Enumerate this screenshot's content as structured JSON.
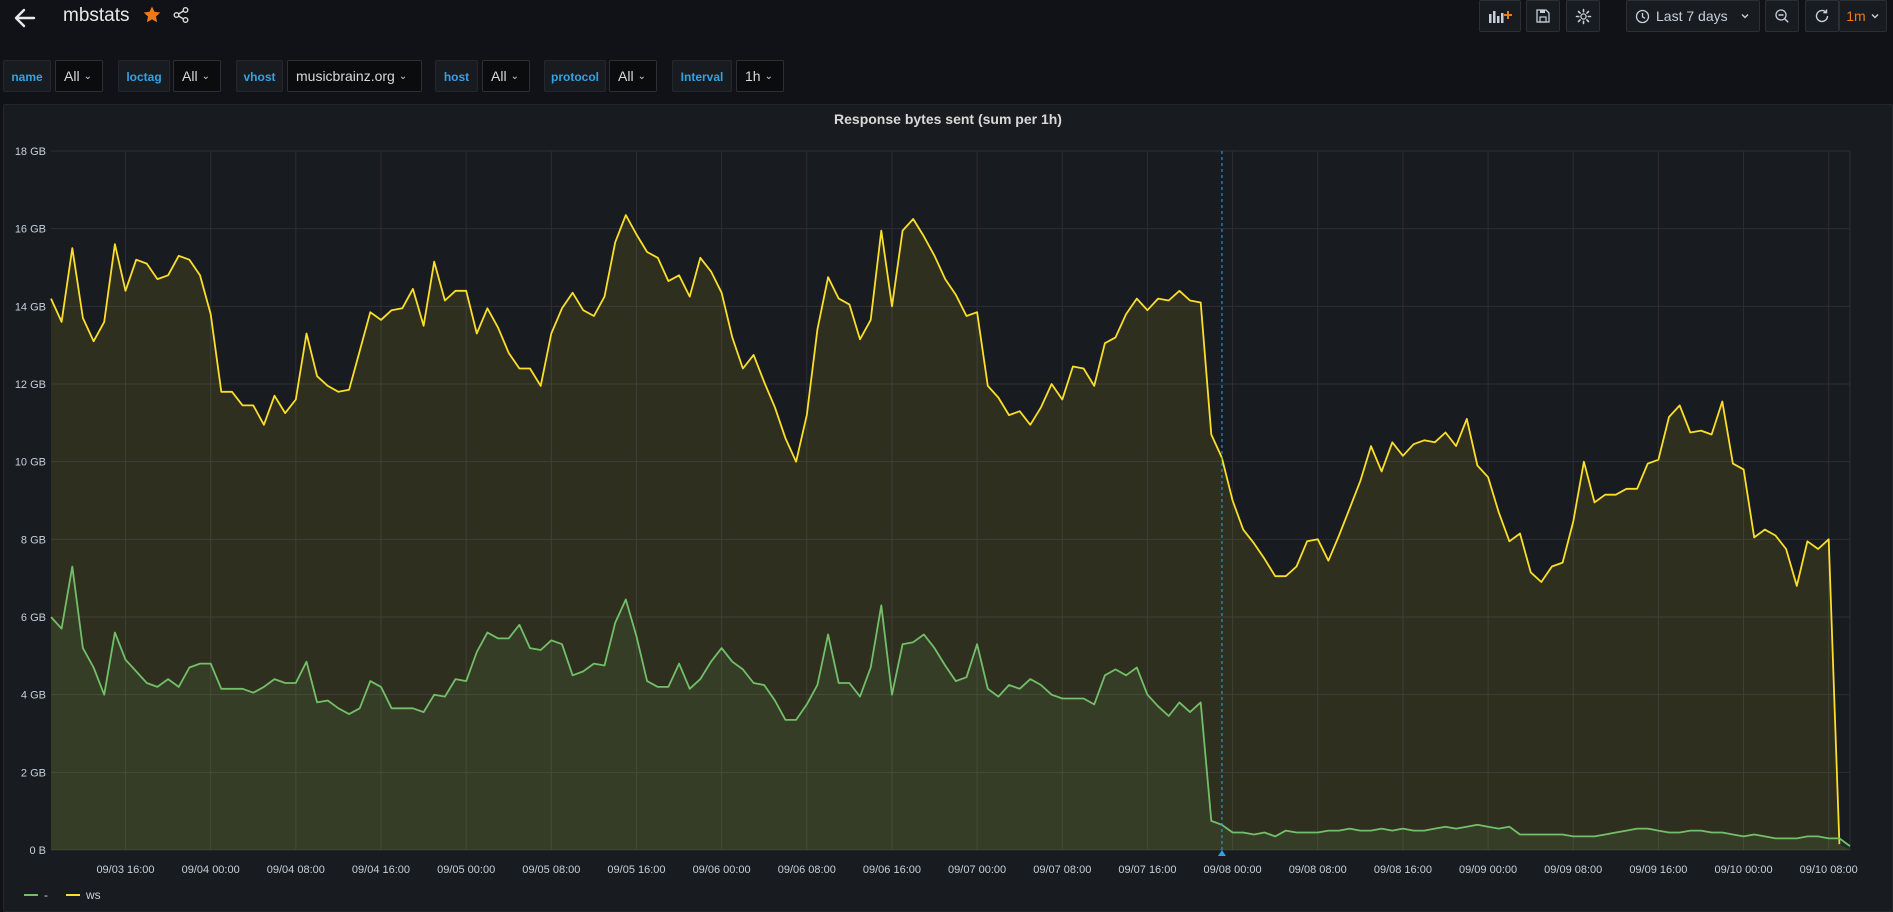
{
  "header": {
    "title": "mbstats",
    "time_range": "Last 7 days",
    "refresh_interval": "1m"
  },
  "variables": [
    {
      "label": "name",
      "value": "All"
    },
    {
      "label": "loctag",
      "value": "All"
    },
    {
      "label": "vhost",
      "value": "musicbrainz.org"
    },
    {
      "label": "host",
      "value": "All"
    },
    {
      "label": "protocol",
      "value": "All"
    },
    {
      "label": "Interval",
      "value": "1h"
    }
  ],
  "colors": {
    "accent": "#33a2e5",
    "series_ws": "#fade2a",
    "series_dash": "#73bf69",
    "star": "#eb7b18"
  },
  "panel": {
    "title": "Response bytes sent (sum per 1h)"
  },
  "chart_data": {
    "type": "area",
    "title": "Response bytes sent (sum per 1h)",
    "y_unit": "GB",
    "ylim": [
      0,
      18
    ],
    "y_ticks": [
      "0 B",
      "2 GB",
      "4 GB",
      "6 GB",
      "8 GB",
      "10 GB",
      "12 GB",
      "14 GB",
      "16 GB",
      "18 GB"
    ],
    "x_ticks": [
      "09/03 16:00",
      "09/04 00:00",
      "09/04 08:00",
      "09/04 16:00",
      "09/05 00:00",
      "09/05 08:00",
      "09/05 16:00",
      "09/06 00:00",
      "09/06 08:00",
      "09/06 16:00",
      "09/07 00:00",
      "09/07 08:00",
      "09/07 16:00",
      "09/08 00:00",
      "09/08 08:00",
      "09/08 16:00",
      "09/09 00:00",
      "09/09 08:00",
      "09/09 16:00",
      "09/10 00:00",
      "09/10 08:00"
    ],
    "x_start": "09/03 09:00",
    "x_end": "09/10 09:00",
    "step_hours": 1,
    "grid": true,
    "legend_placement": "bottom-left",
    "series": [
      {
        "name": "-",
        "values": [
          6.0,
          5.7,
          7.3,
          5.2,
          4.7,
          4.0,
          5.6,
          4.9,
          4.6,
          4.3,
          4.2,
          4.4,
          4.2,
          4.7,
          4.8,
          4.8,
          4.15,
          4.15,
          4.15,
          4.05,
          4.2,
          4.4,
          4.3,
          4.3,
          4.85,
          3.8,
          3.85,
          3.65,
          3.5,
          3.65,
          4.35,
          4.2,
          3.65,
          3.65,
          3.65,
          3.55,
          4.0,
          3.95,
          4.4,
          4.35,
          5.1,
          5.6,
          5.45,
          5.45,
          5.8,
          5.2,
          5.15,
          5.4,
          5.3,
          4.5,
          4.6,
          4.8,
          4.75,
          5.85,
          6.45,
          5.5,
          4.35,
          4.2,
          4.2,
          4.8,
          4.15,
          4.4,
          4.85,
          5.2,
          4.85,
          4.65,
          4.3,
          4.25,
          3.85,
          3.35,
          3.35,
          3.75,
          4.25,
          5.55,
          4.3,
          4.3,
          3.95,
          4.7,
          6.3,
          4.0,
          5.3,
          5.35,
          5.55,
          5.2,
          4.75,
          4.35,
          4.45,
          5.3,
          4.15,
          3.95,
          4.25,
          4.15,
          4.4,
          4.25,
          4.0,
          3.9,
          3.9,
          3.9,
          3.75,
          4.5,
          4.65,
          4.5,
          4.7,
          4.0,
          3.7,
          3.45,
          3.8,
          3.55,
          3.8,
          0.75,
          0.65,
          0.45,
          0.45,
          0.4,
          0.45,
          0.35,
          0.5,
          0.45,
          0.45,
          0.45,
          0.5,
          0.5,
          0.55,
          0.5,
          0.5,
          0.55,
          0.5,
          0.55,
          0.5,
          0.5,
          0.55,
          0.6,
          0.55,
          0.6,
          0.65,
          0.6,
          0.55,
          0.6,
          0.4,
          0.4,
          0.4,
          0.4,
          0.4,
          0.35,
          0.35,
          0.35,
          0.4,
          0.45,
          0.5,
          0.55,
          0.55,
          0.5,
          0.45,
          0.45,
          0.5,
          0.5,
          0.45,
          0.45,
          0.4,
          0.35,
          0.4,
          0.35,
          0.3,
          0.3,
          0.3,
          0.35,
          0.35,
          0.3,
          0.3,
          0.1
        ]
      },
      {
        "name": "ws",
        "values": [
          14.2,
          13.6,
          15.5,
          13.7,
          13.1,
          13.6,
          15.6,
          14.4,
          15.2,
          15.1,
          14.7,
          14.8,
          15.3,
          15.2,
          14.8,
          13.8,
          11.8,
          11.8,
          11.45,
          11.45,
          10.95,
          11.7,
          11.25,
          11.6,
          13.3,
          12.2,
          11.95,
          11.8,
          11.85,
          12.85,
          13.85,
          13.65,
          13.9,
          13.95,
          14.45,
          13.5,
          15.15,
          14.15,
          14.4,
          14.4,
          13.3,
          13.95,
          13.45,
          12.8,
          12.4,
          12.4,
          11.95,
          13.3,
          13.95,
          14.35,
          13.9,
          13.75,
          14.25,
          15.65,
          16.35,
          15.85,
          15.4,
          15.25,
          14.65,
          14.8,
          14.25,
          15.25,
          14.9,
          14.35,
          13.2,
          12.4,
          12.75,
          12.05,
          11.4,
          10.6,
          10.0,
          11.2,
          13.4,
          14.75,
          14.2,
          14.05,
          13.15,
          13.65,
          15.95,
          14.0,
          15.95,
          16.25,
          15.8,
          15.3,
          14.7,
          14.3,
          13.75,
          13.85,
          11.95,
          11.65,
          11.2,
          11.3,
          10.95,
          11.4,
          12.0,
          11.6,
          12.45,
          12.4,
          11.95,
          13.05,
          13.2,
          13.8,
          14.2,
          13.9,
          14.2,
          14.15,
          14.4,
          14.15,
          14.1,
          10.7,
          10.1,
          9.0,
          8.25,
          7.9,
          7.5,
          7.05,
          7.05,
          7.3,
          7.95,
          8.0,
          7.45,
          8.1,
          8.8,
          9.5,
          10.4,
          9.75,
          10.5,
          10.15,
          10.45,
          10.55,
          10.5,
          10.75,
          10.4,
          11.1,
          9.9,
          9.6,
          8.7,
          7.95,
          8.15,
          7.15,
          6.9,
          7.3,
          7.4,
          8.45,
          10.0,
          8.95,
          9.15,
          9.15,
          9.3,
          9.3,
          9.95,
          10.05,
          11.15,
          11.45,
          10.75,
          10.8,
          10.7,
          11.55,
          9.95,
          9.8,
          8.05,
          8.25,
          8.1,
          7.75,
          6.8,
          7.95,
          7.75,
          8.0,
          0.15
        ]
      }
    ]
  }
}
